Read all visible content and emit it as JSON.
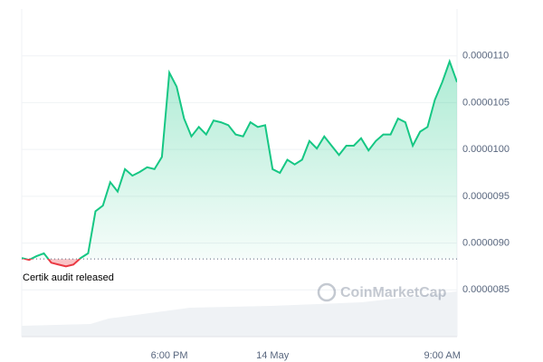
{
  "chart_data": {
    "type": "line",
    "annotation": "Certik audit released",
    "watermark": "CoinMarketCap",
    "categories": [
      null,
      null,
      null,
      null,
      null,
      null,
      null,
      null,
      null,
      null,
      null,
      null,
      null,
      null,
      null,
      null,
      null,
      null,
      null,
      null,
      "6:00 PM",
      null,
      null,
      null,
      null,
      null,
      null,
      null,
      null,
      null,
      null,
      null,
      null,
      null,
      "14 May",
      null,
      null,
      null,
      null,
      null,
      null,
      null,
      null,
      null,
      null,
      null,
      null,
      null,
      null,
      null,
      null,
      null,
      null,
      null,
      null,
      null,
      null,
      "9:00 AM",
      null,
      null
    ],
    "series": [
      {
        "color": "#16c784",
        "below_color": "#ea3943",
        "values": [
          8.84e-06,
          8.82e-06,
          8.86e-06,
          8.89e-06,
          8.79e-06,
          8.77e-06,
          8.75e-06,
          8.77e-06,
          8.84e-06,
          8.89e-06,
          9.34e-06,
          9.4e-06,
          9.65e-06,
          9.55e-06,
          9.79e-06,
          9.72e-06,
          9.76e-06,
          9.81e-06,
          9.79e-06,
          9.92e-06,
          1.082e-05,
          1.067e-05,
          1.033e-05,
          1.014e-05,
          1.024e-05,
          1.016e-05,
          1.031e-05,
          1.029e-05,
          1.026e-05,
          1.016e-05,
          1.014e-05,
          1.029e-05,
          1.024e-05,
          1.026e-05,
          9.79e-06,
          9.75e-06,
          9.89e-06,
          9.84e-06,
          9.89e-06,
          1.009e-05,
          1.001e-05,
          1.014e-05,
          1.004e-05,
          9.94e-06,
          1.004e-05,
          1.004e-05,
          1.012e-05,
          9.99e-06,
          1.009e-05,
          1.016e-05,
          1.016e-05,
          1.033e-05,
          1.029e-05,
          1.004e-05,
          1.019e-05,
          1.024e-05,
          1.053e-05,
          1.072e-05,
          1.094e-05,
          1.072e-05
        ]
      }
    ],
    "baseline": 8.83e-06,
    "ylim": [
      8e-06,
      1.15e-05
    ],
    "yticks": [
      {
        "value": 8.5e-06,
        "label": "0.0000085"
      },
      {
        "value": 9e-06,
        "label": "0.0000090"
      },
      {
        "value": 9.5e-06,
        "label": "0.0000095"
      },
      {
        "value": 1e-05,
        "label": "0.0000100"
      },
      {
        "value": 1.05e-05,
        "label": "0.0000105"
      },
      {
        "value": 1.1e-05,
        "label": "0.0000110"
      }
    ],
    "grid": true
  }
}
